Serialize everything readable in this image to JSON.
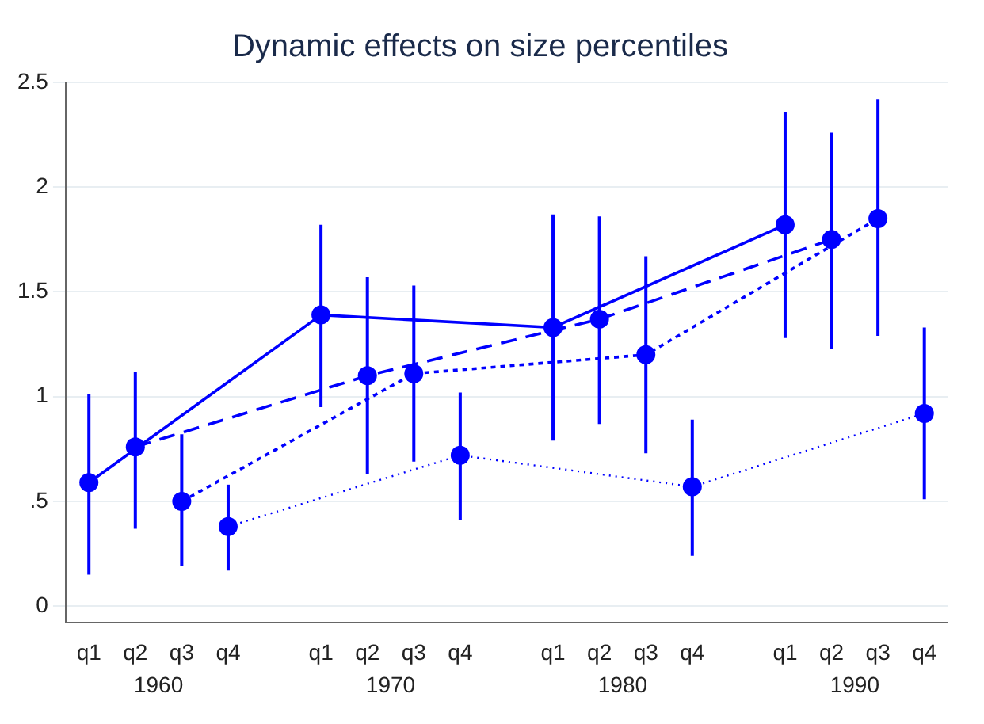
{
  "chart_data": {
    "type": "line",
    "title": "Dynamic effects on size percentiles",
    "categories": [
      "q1",
      "q2",
      "q3",
      "q4",
      null,
      "q1",
      "q2",
      "q3",
      "q4",
      null,
      "q1",
      "q2",
      "q3",
      "q4",
      null,
      "q1",
      "q2",
      "q3",
      "q4"
    ],
    "series": [
      {
        "color": "#0000ff",
        "line_style": "solid",
        "values": [
          0.59,
          null,
          null,
          null,
          null,
          1.39,
          null,
          null,
          null,
          null,
          1.33,
          null,
          null,
          null,
          null,
          1.82,
          null,
          null,
          null
        ],
        "errors": [
          [
            0.15,
            1.01
          ],
          null,
          null,
          null,
          null,
          [
            0.95,
            1.82
          ],
          null,
          null,
          null,
          null,
          [
            0.79,
            1.87
          ],
          null,
          null,
          null,
          null,
          [
            1.28,
            2.36
          ],
          null,
          null,
          null
        ]
      },
      {
        "color": "#0000ff",
        "line_style": "dashed",
        "values": [
          null,
          0.76,
          null,
          null,
          null,
          null,
          1.1,
          null,
          null,
          null,
          null,
          1.37,
          null,
          null,
          null,
          null,
          1.75,
          null,
          null
        ],
        "errors": [
          null,
          [
            0.37,
            1.12
          ],
          null,
          null,
          null,
          null,
          [
            0.63,
            1.57
          ],
          null,
          null,
          null,
          null,
          [
            0.87,
            1.86
          ],
          null,
          null,
          null,
          null,
          [
            1.23,
            2.26
          ],
          null,
          null
        ]
      },
      {
        "color": "#0000ff",
        "line_style": "dotted",
        "values": [
          null,
          null,
          0.5,
          null,
          null,
          null,
          null,
          1.11,
          null,
          null,
          null,
          null,
          1.2,
          null,
          null,
          null,
          null,
          1.85,
          null
        ],
        "errors": [
          null,
          null,
          [
            0.19,
            0.82
          ],
          null,
          null,
          null,
          null,
          [
            0.69,
            1.53
          ],
          null,
          null,
          null,
          null,
          [
            0.73,
            1.67
          ],
          null,
          null,
          null,
          null,
          [
            1.29,
            2.42
          ],
          null
        ]
      },
      {
        "color": "#0000ff",
        "line_style": "dotted",
        "values": [
          null,
          null,
          null,
          0.38,
          null,
          null,
          null,
          null,
          0.72,
          null,
          null,
          null,
          null,
          0.57,
          null,
          null,
          null,
          null,
          0.92
        ],
        "errors": [
          null,
          null,
          null,
          [
            0.17,
            0.58
          ],
          null,
          null,
          null,
          null,
          [
            0.41,
            1.02
          ],
          null,
          null,
          null,
          null,
          [
            0.24,
            0.89
          ],
          null,
          null,
          null,
          null,
          [
            0.51,
            1.33
          ]
        ]
      }
    ],
    "ylim": [
      -0.08,
      2.5
    ],
    "yticks": [
      0,
      {
        "value": 0.5,
        "label": ".5"
      },
      1,
      1.5,
      2,
      2.5
    ],
    "grid": "y",
    "marker": "circle",
    "legend": false,
    "annotations": [
      "1960",
      "1970",
      "1980",
      "1990"
    ]
  }
}
